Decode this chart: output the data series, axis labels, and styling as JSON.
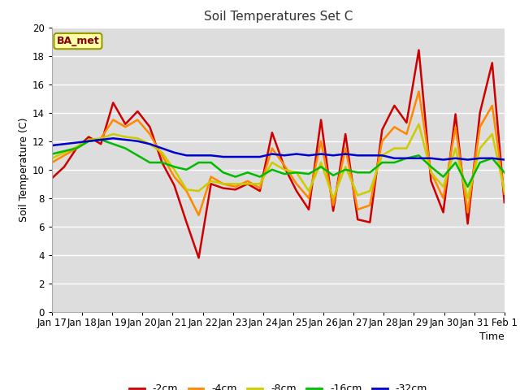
{
  "title": "Soil Temperatures Set C",
  "xlabel": "Time",
  "ylabel": "Soil Temperature (C)",
  "annotation": "BA_met",
  "ylim": [
    0,
    20
  ],
  "yticks": [
    0,
    2,
    4,
    6,
    8,
    10,
    12,
    14,
    16,
    18,
    20
  ],
  "x_labels": [
    "Jan 17",
    "Jan 18",
    "Jan 19",
    "Jan 20",
    "Jan 21",
    "Jan 22",
    "Jan 23",
    "Jan 24",
    "Jan 25",
    "Jan 26",
    "Jan 27",
    "Jan 28",
    "Jan 29",
    "Jan 30",
    "Jan 31",
    "Feb 1"
  ],
  "colors": {
    "-2cm": "#cc0000",
    "-4cm": "#ff8800",
    "-8cm": "#cccc00",
    "-16cm": "#00bb00",
    "-32cm": "#0000cc"
  },
  "background_color": "#dddddd",
  "fig_bg": "#ffffff",
  "series": {
    "-2cm": [
      9.4,
      10.2,
      11.5,
      12.3,
      11.8,
      14.7,
      13.2,
      14.1,
      13.0,
      10.5,
      8.9,
      6.3,
      3.8,
      9.0,
      8.7,
      8.6,
      9.0,
      8.5,
      12.6,
      10.2,
      8.5,
      7.2,
      13.5,
      7.1,
      12.5,
      6.5,
      6.3,
      12.8,
      14.5,
      13.3,
      18.4,
      9.2,
      7.0,
      13.9,
      6.2,
      14.0,
      17.5,
      7.7
    ],
    "-4cm": [
      10.5,
      11.0,
      11.5,
      12.0,
      12.2,
      13.5,
      13.0,
      13.5,
      12.5,
      11.0,
      9.5,
      8.5,
      6.8,
      9.5,
      9.0,
      8.8,
      9.2,
      8.7,
      11.5,
      10.3,
      9.0,
      8.0,
      12.0,
      7.5,
      11.5,
      7.2,
      7.5,
      12.0,
      13.0,
      12.5,
      15.5,
      9.8,
      8.0,
      13.0,
      7.0,
      13.0,
      14.5,
      8.3
    ],
    "-8cm": [
      10.8,
      11.2,
      11.6,
      12.1,
      12.2,
      12.5,
      12.3,
      12.2,
      11.8,
      11.2,
      10.0,
      8.6,
      8.5,
      9.2,
      9.0,
      9.0,
      9.0,
      9.0,
      10.5,
      10.0,
      9.8,
      8.5,
      10.5,
      8.0,
      10.2,
      8.2,
      8.5,
      11.0,
      11.5,
      11.5,
      13.2,
      9.8,
      8.8,
      11.5,
      8.0,
      11.5,
      12.5,
      8.5
    ],
    "-16cm": [
      11.1,
      11.3,
      11.5,
      12.0,
      12.1,
      11.8,
      11.5,
      11.0,
      10.5,
      10.5,
      10.2,
      10.0,
      10.5,
      10.5,
      9.8,
      9.5,
      9.8,
      9.5,
      10.0,
      9.7,
      9.8,
      9.7,
      10.2,
      9.6,
      10.0,
      9.8,
      9.8,
      10.5,
      10.5,
      10.8,
      11.0,
      10.2,
      9.5,
      10.5,
      8.8,
      10.5,
      10.8,
      9.8
    ],
    "-32cm": [
      11.7,
      11.8,
      11.9,
      12.0,
      12.1,
      12.2,
      12.1,
      12.0,
      11.8,
      11.5,
      11.2,
      11.0,
      11.0,
      11.0,
      10.9,
      10.9,
      10.9,
      10.9,
      11.1,
      11.0,
      11.1,
      11.0,
      11.1,
      11.0,
      11.1,
      11.0,
      11.0,
      11.0,
      10.8,
      10.8,
      10.8,
      10.8,
      10.7,
      10.8,
      10.7,
      10.8,
      10.8,
      10.7
    ]
  }
}
